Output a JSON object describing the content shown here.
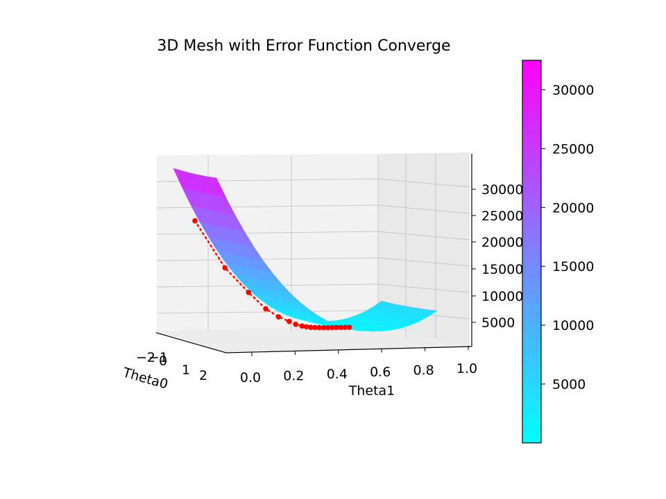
{
  "chart_data": {
    "type": "surface3d",
    "title": "3D Mesh with Error Function Converge",
    "xlabel": "Theta0",
    "ylabel": "Theta1",
    "zlabel": "",
    "theta0_ticks": [
      "−2",
      "−1",
      "0",
      "1",
      "2"
    ],
    "theta1_ticks": [
      "0.0",
      "0.2",
      "0.4",
      "0.6",
      "0.8",
      "1.0"
    ],
    "z_ticks": [
      "5000",
      "10000",
      "15000",
      "20000",
      "25000",
      "30000"
    ],
    "theta0_range": [
      -2,
      2
    ],
    "theta1_range": [
      0,
      1
    ],
    "z_range": [
      0,
      35000
    ],
    "colormap": [
      "#00ffff",
      "#ff00ff"
    ],
    "colorbar": {
      "ticks": [
        "5000",
        "10000",
        "15000",
        "20000",
        "25000",
        "30000"
      ],
      "values": [
        5000,
        10000,
        15000,
        20000,
        25000,
        30000
      ],
      "range": [
        0,
        32500
      ]
    },
    "convergence_path": {
      "color": "#ff0000",
      "points": [
        {
          "theta1": 0.0,
          "error": 20000
        },
        {
          "theta1": 0.14,
          "error": 12000
        },
        {
          "theta1": 0.25,
          "error": 7800
        },
        {
          "theta1": 0.33,
          "error": 5000
        },
        {
          "theta1": 0.39,
          "error": 3600
        },
        {
          "theta1": 0.44,
          "error": 2800
        },
        {
          "theta1": 0.47,
          "error": 2300
        },
        {
          "theta1": 0.5,
          "error": 2000
        },
        {
          "theta1": 0.52,
          "error": 1850
        },
        {
          "theta1": 0.54,
          "error": 1750
        },
        {
          "theta1": 0.56,
          "error": 1700
        },
        {
          "theta1": 0.58,
          "error": 1680
        },
        {
          "theta1": 0.6,
          "error": 1660
        },
        {
          "theta1": 0.62,
          "error": 1650
        },
        {
          "theta1": 0.64,
          "error": 1645
        },
        {
          "theta1": 0.66,
          "error": 1640
        },
        {
          "theta1": 0.68,
          "error": 1640
        },
        {
          "theta1": 0.7,
          "error": 1640
        },
        {
          "theta1": 0.72,
          "error": 1640
        }
      ]
    }
  }
}
